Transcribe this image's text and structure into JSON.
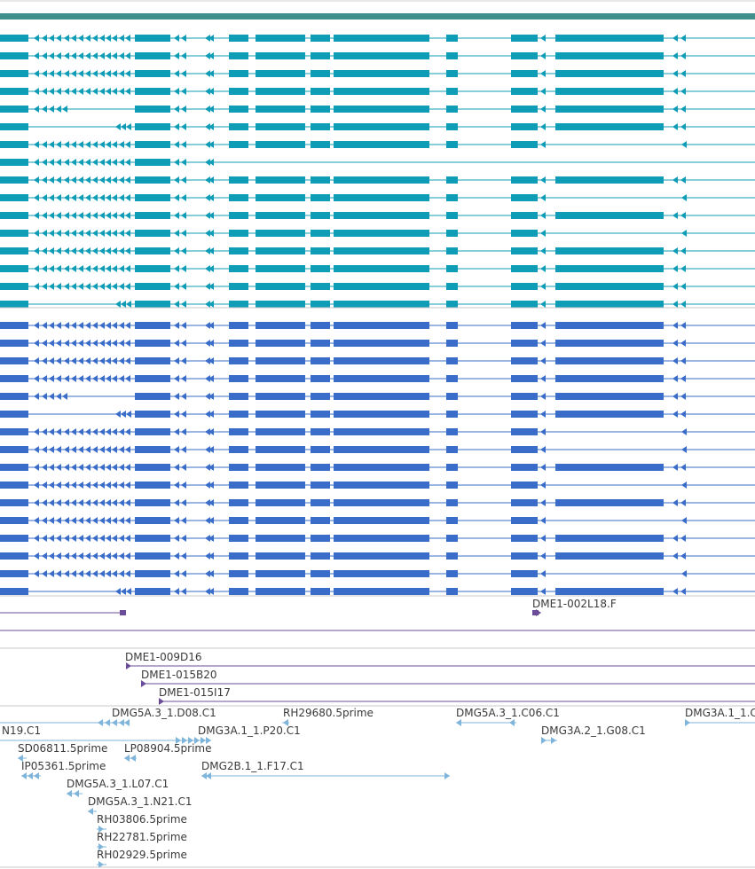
{
  "colors": {
    "top_bar": "#3f8f8c",
    "transcript_cyan": "#0f9cb6",
    "transcript_blue": "#3a6dc9",
    "clone_purple": "#6b4c99",
    "est_blue": "#7fb4db",
    "separator": "#c8c8c8",
    "label_text": "#3a3a3a"
  },
  "tracks": {
    "transcripts_cyan": {
      "count": 16
    },
    "transcripts_blue": {
      "count": 16
    },
    "clones": {
      "labels": [
        "DME1-002L18.F",
        "DME1-009D16",
        "DME1-015B20",
        "DME1-015I17"
      ]
    },
    "ests": {
      "labels": [
        "DMG5A.3_1.D08.C1",
        "RH29680.5prime",
        "DMG5A.3_1.C06.C1",
        "DMG3A.1_1.C",
        "N19.C1",
        "DMG3A.1_1.P20.C1",
        "DMG3A.2_1.G08.C1",
        "SD06811.5prime",
        "LP08904.5prime",
        "IP05361.5prime",
        "DMG2B.1_1.F17.C1",
        "DMG5A.3_1.L07.C1",
        "DMG5A.3_1.N21.C1",
        "RH03806.5prime",
        "RH22781.5prime",
        "RH02929.5prime"
      ]
    }
  }
}
